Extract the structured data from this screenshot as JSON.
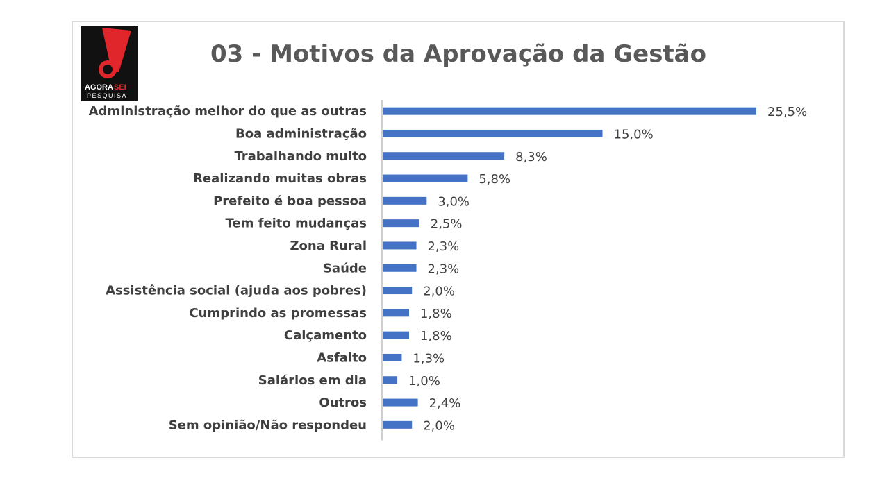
{
  "logo": {
    "line1a": "AGORA",
    "line1b": "SEI",
    "line2": "PESQUISA"
  },
  "chart_data": {
    "type": "bar",
    "orientation": "horizontal",
    "title": "03 - Motivos da Aprovação da Gestão",
    "categories": [
      "Administração melhor do que as outras",
      "Boa administração",
      "Trabalhando muito",
      "Realizando muitas obras",
      "Prefeito é boa pessoa",
      "Tem feito mudanças",
      "Zona Rural",
      "Saúde",
      "Assistência social (ajuda aos pobres)",
      "Cumprindo as promessas",
      "Calçamento",
      "Asfalto",
      "Salários em dia",
      "Outros",
      "Sem opinião/Não respondeu"
    ],
    "values": [
      25.5,
      15.0,
      8.3,
      5.8,
      3.0,
      2.5,
      2.3,
      2.3,
      2.0,
      1.8,
      1.8,
      1.3,
      1.0,
      2.4,
      2.0
    ],
    "value_labels": [
      "25,5%",
      "15,0%",
      "8,3%",
      "5,8%",
      "3,0%",
      "2,5%",
      "2,3%",
      "2,3%",
      "2,0%",
      "1,8%",
      "1,8%",
      "1,3%",
      "1,0%",
      "2,4%",
      "2,0%"
    ],
    "grid": false,
    "legend": "none",
    "colors": {
      "bar": "#4472c4",
      "axis": "#bfbfbf",
      "title": "#595959"
    }
  }
}
